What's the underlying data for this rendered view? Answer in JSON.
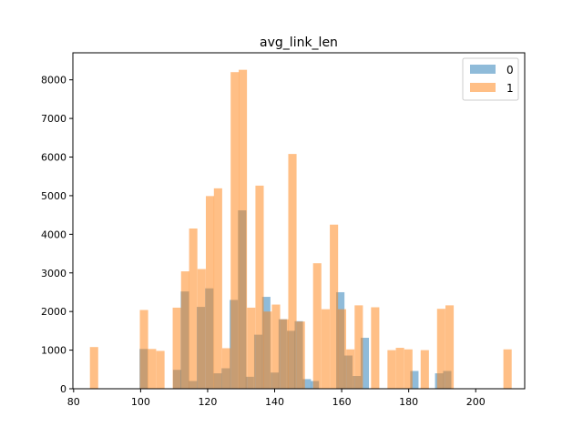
{
  "chart_data": {
    "type": "bar",
    "title": "avg_link_len",
    "xlabel": "",
    "ylabel": "",
    "xlim": [
      79.78,
      214.62
    ],
    "ylim": [
      0,
      8700
    ],
    "xticks": [
      80,
      100,
      120,
      140,
      160,
      180,
      200
    ],
    "yticks": [
      0,
      1000,
      2000,
      3000,
      4000,
      5000,
      6000,
      7000,
      8000
    ],
    "bin_width": 2.47,
    "grid": false,
    "legend": "top-right",
    "series": [
      {
        "name": "0",
        "color": "#1f77b4",
        "opacity": 0.5,
        "bins": [
          [
            100.9,
            1030
          ],
          [
            110.9,
            490
          ],
          [
            113.2,
            2520
          ],
          [
            115.6,
            200
          ],
          [
            118.0,
            2120
          ],
          [
            120.5,
            2600
          ],
          [
            123.0,
            400
          ],
          [
            125.4,
            530
          ],
          [
            127.8,
            2300
          ],
          [
            130.3,
            4620
          ],
          [
            132.6,
            310
          ],
          [
            135.1,
            1400
          ],
          [
            137.5,
            2380
          ],
          [
            140.0,
            420
          ],
          [
            142.4,
            1800
          ],
          [
            144.9,
            1500
          ],
          [
            147.2,
            1750
          ],
          [
            149.6,
            250
          ],
          [
            152.0,
            200
          ],
          [
            159.6,
            2500
          ],
          [
            162.0,
            860
          ],
          [
            164.5,
            330
          ],
          [
            166.9,
            1320
          ],
          [
            181.7,
            460
          ],
          [
            189.1,
            400
          ],
          [
            191.5,
            460
          ]
        ]
      },
      {
        "name": "1",
        "color": "#ff7f0e",
        "opacity": 0.5,
        "bins": [
          [
            86.1,
            1080
          ],
          [
            101.0,
            2040
          ],
          [
            103.4,
            1030
          ],
          [
            105.9,
            980
          ],
          [
            110.8,
            2100
          ],
          [
            113.3,
            3040
          ],
          [
            115.7,
            4150
          ],
          [
            118.2,
            3100
          ],
          [
            120.7,
            4990
          ],
          [
            123.1,
            5190
          ],
          [
            125.6,
            1050
          ],
          [
            128.1,
            8200
          ],
          [
            130.5,
            8260
          ],
          [
            133.0,
            2100
          ],
          [
            135.5,
            5260
          ],
          [
            137.9,
            2000
          ],
          [
            140.4,
            2180
          ],
          [
            142.9,
            1800
          ],
          [
            145.3,
            6080
          ],
          [
            147.8,
            1740
          ],
          [
            152.7,
            3250
          ],
          [
            155.2,
            2060
          ],
          [
            157.7,
            4250
          ],
          [
            160.1,
            2060
          ],
          [
            162.6,
            1020
          ],
          [
            165.1,
            2160
          ],
          [
            170.0,
            2110
          ],
          [
            174.9,
            1000
          ],
          [
            177.4,
            1060
          ],
          [
            179.9,
            1020
          ],
          [
            184.8,
            1000
          ],
          [
            189.7,
            2070
          ],
          [
            192.2,
            2160
          ],
          [
            209.5,
            1020
          ]
        ]
      }
    ]
  }
}
